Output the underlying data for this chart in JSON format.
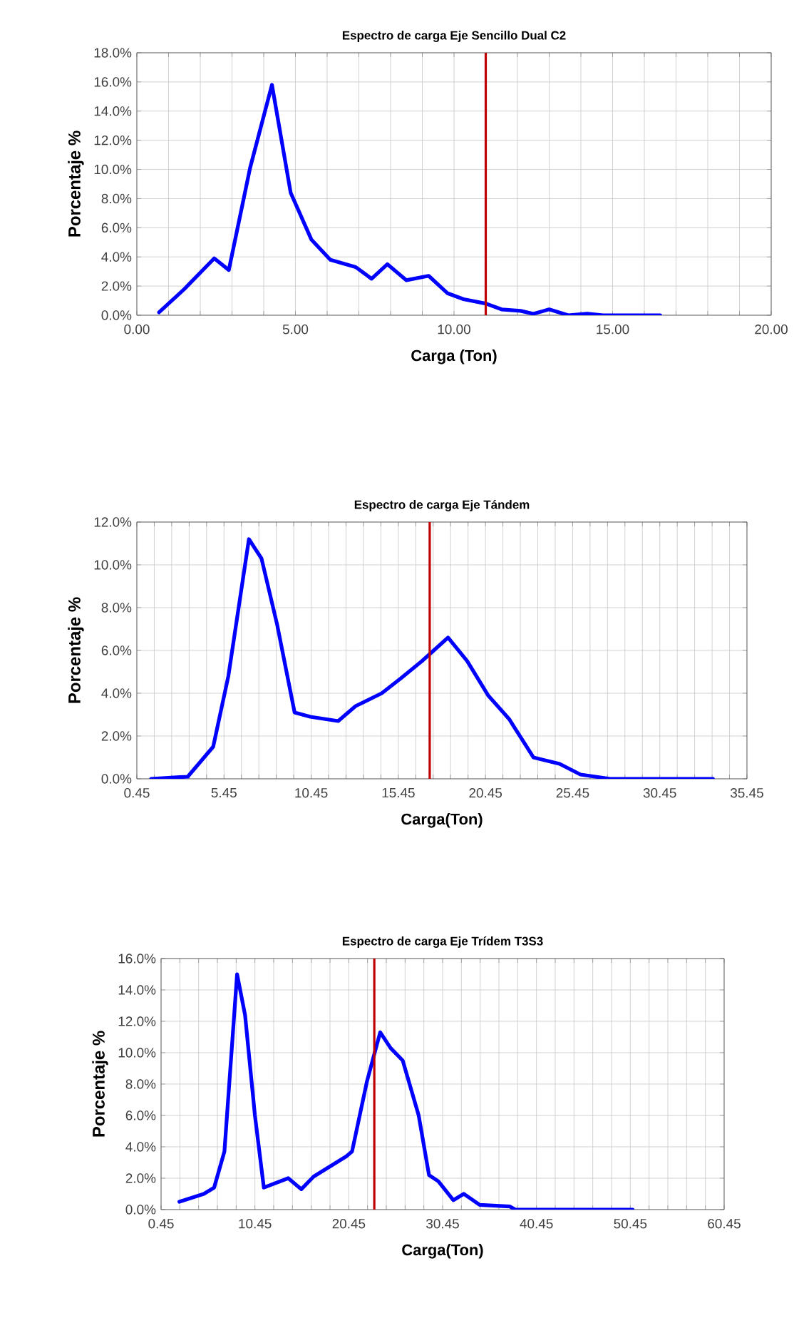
{
  "chart_data": [
    {
      "type": "line",
      "title": "Espectro de carga Eje Sencillo Dual C2",
      "xlabel": "Carga   (Ton)",
      "ylabel": "Porcentaje %",
      "grid": true,
      "xlim": [
        0,
        20
      ],
      "ylim": [
        0,
        18
      ],
      "xticks": [
        {
          "value": 0,
          "label": "0.00"
        },
        {
          "value": 1,
          "label": null
        },
        {
          "value": 2,
          "label": null
        },
        {
          "value": 3,
          "label": null
        },
        {
          "value": 4,
          "label": null
        },
        {
          "value": 5,
          "label": "5.00"
        },
        {
          "value": 6,
          "label": null
        },
        {
          "value": 7,
          "label": null
        },
        {
          "value": 8,
          "label": null
        },
        {
          "value": 9,
          "label": null
        },
        {
          "value": 10,
          "label": "10.00"
        },
        {
          "value": 11,
          "label": null
        },
        {
          "value": 12,
          "label": null
        },
        {
          "value": 13,
          "label": null
        },
        {
          "value": 14,
          "label": null
        },
        {
          "value": 15,
          "label": "15.00"
        },
        {
          "value": 16,
          "label": null
        },
        {
          "value": 17,
          "label": null
        },
        {
          "value": 18,
          "label": null
        },
        {
          "value": 19,
          "label": null
        },
        {
          "value": 20,
          "label": "20.00"
        }
      ],
      "yticks": [
        {
          "value": 0,
          "label": "0.0%"
        },
        {
          "value": 2,
          "label": "2.0%"
        },
        {
          "value": 4,
          "label": "4.0%"
        },
        {
          "value": 6,
          "label": "6.0%"
        },
        {
          "value": 8,
          "label": "8.0%"
        },
        {
          "value": 10,
          "label": "10.0%"
        },
        {
          "value": 12,
          "label": "12.0%"
        },
        {
          "value": 14,
          "label": "14.0%"
        },
        {
          "value": 16,
          "label": "16.0%"
        },
        {
          "value": 18,
          "label": "18.0%"
        }
      ],
      "ref_lines": [
        {
          "axis": "x",
          "value": 11,
          "color": "#c00000"
        }
      ],
      "series": [
        {
          "color": "#0000ff",
          "x": [
            0.7,
            1.5,
            2.44,
            2.9,
            3.57,
            4.26,
            4.85,
            5.5,
            6.1,
            6.9,
            7.4,
            7.9,
            8.5,
            9.2,
            9.8,
            10.3,
            11.0,
            11.5,
            12.1,
            12.5,
            13.0,
            13.6,
            14.2,
            14.7,
            16.5
          ],
          "values": [
            0.2,
            1.8,
            3.9,
            3.1,
            10.1,
            15.8,
            8.4,
            5.2,
            3.8,
            3.3,
            2.5,
            3.5,
            2.4,
            2.7,
            1.5,
            1.1,
            0.8,
            0.4,
            0.3,
            0.1,
            0.4,
            0.0,
            0.1,
            0,
            0
          ]
        }
      ]
    },
    {
      "type": "line",
      "title": "Espectro de carga Eje Tándem",
      "xlabel": "Carga(Ton)",
      "ylabel": "Porcentaje %",
      "grid": true,
      "xlim": [
        0.45,
        35.45
      ],
      "ylim": [
        0,
        12
      ],
      "xticks": [
        {
          "value": 0.45,
          "label": "0.45"
        },
        {
          "value": 1.45,
          "label": null
        },
        {
          "value": 2.45,
          "label": null
        },
        {
          "value": 3.45,
          "label": null
        },
        {
          "value": 4.45,
          "label": null
        },
        {
          "value": 5.45,
          "label": "5.45"
        },
        {
          "value": 6.45,
          "label": null
        },
        {
          "value": 7.45,
          "label": null
        },
        {
          "value": 8.45,
          "label": null
        },
        {
          "value": 9.45,
          "label": null
        },
        {
          "value": 10.45,
          "label": "10.45"
        },
        {
          "value": 11.45,
          "label": null
        },
        {
          "value": 12.45,
          "label": null
        },
        {
          "value": 13.45,
          "label": null
        },
        {
          "value": 14.45,
          "label": null
        },
        {
          "value": 15.45,
          "label": "15.45"
        },
        {
          "value": 16.45,
          "label": null
        },
        {
          "value": 17.45,
          "label": null
        },
        {
          "value": 18.45,
          "label": null
        },
        {
          "value": 19.45,
          "label": null
        },
        {
          "value": 20.45,
          "label": "20.45"
        },
        {
          "value": 21.45,
          "label": null
        },
        {
          "value": 22.45,
          "label": null
        },
        {
          "value": 23.45,
          "label": null
        },
        {
          "value": 24.45,
          "label": null
        },
        {
          "value": 25.45,
          "label": "25.45"
        },
        {
          "value": 26.45,
          "label": null
        },
        {
          "value": 27.45,
          "label": null
        },
        {
          "value": 28.45,
          "label": null
        },
        {
          "value": 29.45,
          "label": null
        },
        {
          "value": 30.45,
          "label": "30.45"
        },
        {
          "value": 31.45,
          "label": null
        },
        {
          "value": 32.45,
          "label": null
        },
        {
          "value": 33.45,
          "label": null
        },
        {
          "value": 34.45,
          "label": null
        },
        {
          "value": 35.45,
          "label": "35.45"
        }
      ],
      "yticks": [
        {
          "value": 0,
          "label": "0.0%"
        },
        {
          "value": 2,
          "label": "2.0%"
        },
        {
          "value": 4,
          "label": "4.0%"
        },
        {
          "value": 6,
          "label": "6.0%"
        },
        {
          "value": 8,
          "label": "8.0%"
        },
        {
          "value": 10,
          "label": "10.0%"
        },
        {
          "value": 12,
          "label": "12.0%"
        }
      ],
      "ref_lines": [
        {
          "axis": "x",
          "value": 17.25,
          "color": "#c00000"
        }
      ],
      "series": [
        {
          "color": "#0000ff",
          "x": [
            1.27,
            3.37,
            4.83,
            5.7,
            6.88,
            7.6,
            8.5,
            9.5,
            10.4,
            12.0,
            13.0,
            14.5,
            15.6,
            16.8,
            18.3,
            19.4,
            20.6,
            21.8,
            23.2,
            24.7,
            25.9,
            27.6,
            33.5
          ],
          "values": [
            0,
            0.1,
            1.5,
            4.8,
            11.2,
            10.3,
            7.2,
            3.1,
            2.9,
            2.7,
            3.4,
            4.0,
            4.7,
            5.5,
            6.6,
            5.5,
            3.9,
            2.8,
            1.0,
            0.7,
            0.2,
            0.0,
            0
          ]
        }
      ]
    },
    {
      "type": "line",
      "title": "Espectro de carga Eje Trídem T3S3",
      "xlabel": "Carga(Ton)",
      "ylabel": "Porcentaje %",
      "grid": true,
      "xlim": [
        0.45,
        60.45
      ],
      "ylim": [
        0,
        16
      ],
      "xticks": [
        {
          "value": 0.45,
          "label": "0.45"
        },
        {
          "value": 2.45,
          "label": null
        },
        {
          "value": 4.45,
          "label": null
        },
        {
          "value": 6.45,
          "label": null
        },
        {
          "value": 8.45,
          "label": null
        },
        {
          "value": 10.45,
          "label": "10.45"
        },
        {
          "value": 12.45,
          "label": null
        },
        {
          "value": 14.45,
          "label": null
        },
        {
          "value": 16.45,
          "label": null
        },
        {
          "value": 18.45,
          "label": null
        },
        {
          "value": 20.45,
          "label": "20.45"
        },
        {
          "value": 22.45,
          "label": null
        },
        {
          "value": 24.45,
          "label": null
        },
        {
          "value": 26.45,
          "label": null
        },
        {
          "value": 28.45,
          "label": null
        },
        {
          "value": 30.45,
          "label": "30.45"
        },
        {
          "value": 32.45,
          "label": null
        },
        {
          "value": 34.45,
          "label": null
        },
        {
          "value": 36.45,
          "label": null
        },
        {
          "value": 38.45,
          "label": null
        },
        {
          "value": 40.45,
          "label": "40.45"
        },
        {
          "value": 42.45,
          "label": null
        },
        {
          "value": 44.45,
          "label": null
        },
        {
          "value": 46.45,
          "label": null
        },
        {
          "value": 48.45,
          "label": null
        },
        {
          "value": 50.45,
          "label": "50.45"
        },
        {
          "value": 52.45,
          "label": null
        },
        {
          "value": 54.45,
          "label": null
        },
        {
          "value": 56.45,
          "label": null
        },
        {
          "value": 58.45,
          "label": null
        },
        {
          "value": 60.45,
          "label": "60.45"
        }
      ],
      "yticks": [
        {
          "value": 0,
          "label": "0.0%"
        },
        {
          "value": 2,
          "label": "2.0%"
        },
        {
          "value": 4,
          "label": "4.0%"
        },
        {
          "value": 6,
          "label": "6.0%"
        },
        {
          "value": 8,
          "label": "8.0%"
        },
        {
          "value": 10,
          "label": "10.0%"
        },
        {
          "value": 12,
          "label": "12.0%"
        },
        {
          "value": 14,
          "label": "14.0%"
        },
        {
          "value": 16,
          "label": "16.0%"
        }
      ],
      "ref_lines": [
        {
          "axis": "x",
          "value": 23.17,
          "color": "#c00000"
        }
      ],
      "series": [
        {
          "color": "#0000ff",
          "x": [
            2.4,
            5.0,
            6.1,
            7.2,
            8.55,
            9.4,
            10.45,
            11.4,
            14.0,
            15.4,
            16.7,
            20.2,
            20.8,
            22.4,
            23.8,
            24.9,
            26.2,
            27.9,
            29.0,
            30.0,
            31.6,
            32.7,
            34.4,
            37.6,
            38.2,
            50.7
          ],
          "values": [
            0.5,
            1.0,
            1.4,
            3.7,
            15.0,
            12.4,
            6.0,
            1.4,
            2.0,
            1.3,
            2.1,
            3.4,
            3.7,
            8.2,
            11.3,
            10.3,
            9.5,
            6.0,
            2.2,
            1.8,
            0.6,
            1.0,
            0.3,
            0.2,
            0,
            0
          ]
        }
      ]
    }
  ]
}
